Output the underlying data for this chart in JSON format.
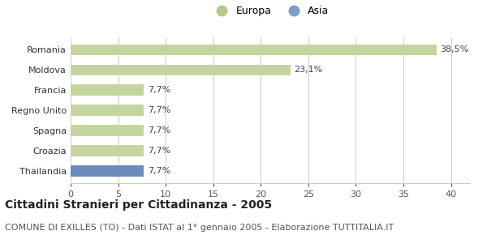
{
  "categories": [
    "Thailandia",
    "Croazia",
    "Spagna",
    "Regno Unito",
    "Francia",
    "Moldova",
    "Romania"
  ],
  "values": [
    7.7,
    7.7,
    7.7,
    7.7,
    7.7,
    23.1,
    38.5
  ],
  "bar_colors": [
    "#6b8cba",
    "#c5d5a0",
    "#c5d5a0",
    "#c5d5a0",
    "#c5d5a0",
    "#c5d5a0",
    "#c5d5a0"
  ],
  "labels": [
    "7,7%",
    "7,7%",
    "7,7%",
    "7,7%",
    "7,7%",
    "23,1%",
    "38,5%"
  ],
  "legend_europa_color": "#b5c98a",
  "legend_asia_color": "#7b9dc8",
  "xlim": [
    0,
    42
  ],
  "xticks": [
    0,
    5,
    10,
    15,
    20,
    25,
    30,
    35,
    40
  ],
  "title": "Cittadini Stranieri per Cittadinanza - 2005",
  "subtitle": "COMUNE DI EXILLES (TO) - Dati ISTAT al 1° gennaio 2005 - Elaborazione TUTTITALIA.IT",
  "title_fontsize": 10,
  "subtitle_fontsize": 8,
  "label_fontsize": 8,
  "tick_fontsize": 8,
  "background_color": "#ffffff",
  "grid_color": "#cccccc"
}
